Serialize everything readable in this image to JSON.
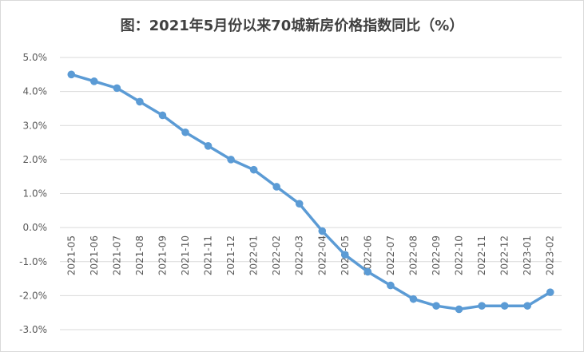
{
  "chart_data": {
    "type": "line",
    "title": "图：2021年5月份以来70城新房价格指数同比（%）",
    "xlabel": "",
    "ylabel": "",
    "ylim": [
      -3.0,
      5.0
    ],
    "ytick_step": 1.0,
    "y_tick_labels": [
      "-3.0%",
      "-2.0%",
      "-1.0%",
      "0.0%",
      "1.0%",
      "2.0%",
      "3.0%",
      "4.0%",
      "5.0%"
    ],
    "grid": true,
    "legend": "none",
    "line_color": "#5b9bd5",
    "categories": [
      "2021-05",
      "2021-06",
      "2021-07",
      "2021-08",
      "2021-09",
      "2021-10",
      "2021-11",
      "2021-12",
      "2022-01",
      "2022-02",
      "2022-03",
      "2022-04",
      "2022-05",
      "2022-06",
      "2022-07",
      "2022-08",
      "2022-09",
      "2022-10",
      "2022-11",
      "2022-12",
      "2023-01",
      "2023-02"
    ],
    "series": [
      {
        "values": [
          4.5,
          4.3,
          4.1,
          3.7,
          3.3,
          2.8,
          2.4,
          2.0,
          1.7,
          1.2,
          0.7,
          -0.1,
          -0.8,
          -1.3,
          -1.7,
          -2.1,
          -2.3,
          -2.4,
          -2.3,
          -2.3,
          -2.3,
          -1.9
        ]
      }
    ]
  }
}
